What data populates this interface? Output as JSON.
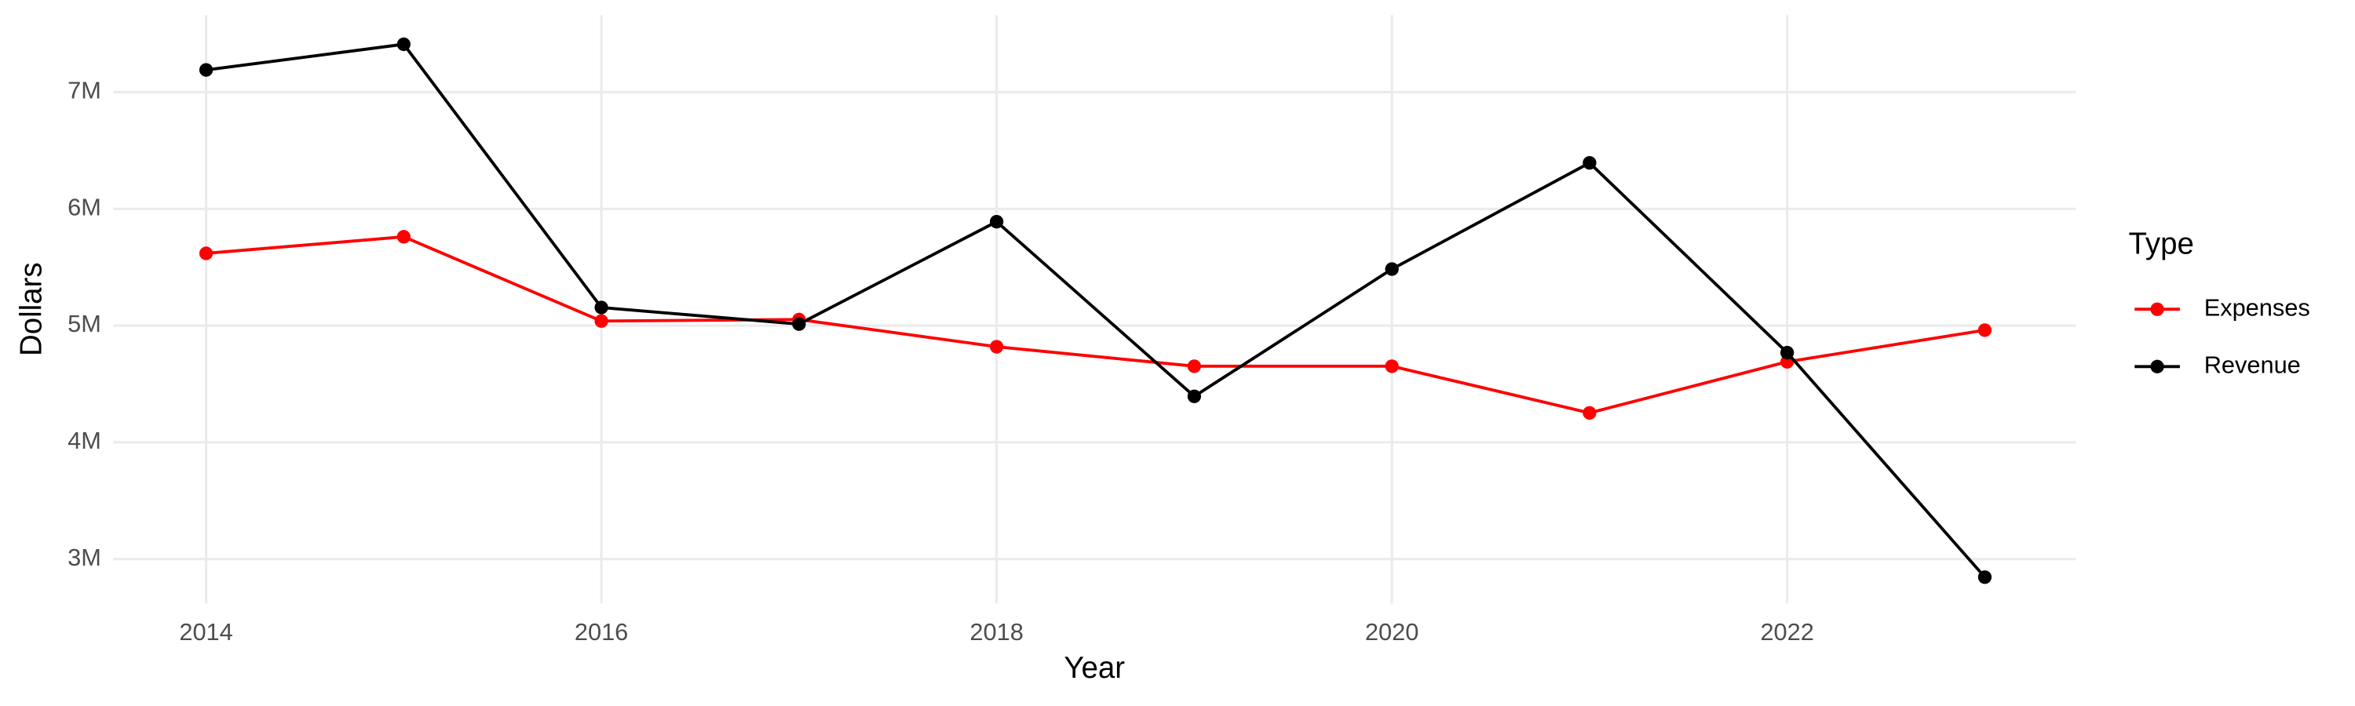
{
  "chart_data": {
    "type": "line",
    "x_label": "Year",
    "y_label": "Dollars",
    "legend_title": "Type",
    "legend_position": "right",
    "grid": true,
    "x": [
      2014,
      2015,
      2016,
      2017,
      2018,
      2019,
      2020,
      2021,
      2022,
      2023
    ],
    "series": [
      {
        "name": "Expenses",
        "color": "#ff0000",
        "values": [
          5619000,
          5761000,
          5039000,
          5052000,
          4819000,
          4652000,
          4652000,
          4252000,
          4690000,
          4961000
        ]
      },
      {
        "name": "Revenue",
        "color": "#000000",
        "values": [
          7190000,
          7410000,
          5155000,
          5013000,
          5890000,
          4394000,
          5484000,
          6394000,
          4768000,
          2845000
        ]
      }
    ],
    "xlim": [
      2013.53,
      2023.46
    ],
    "xticks": [
      2014,
      2016,
      2018,
      2020,
      2022
    ],
    "ylim": [
      2620000,
      7660000
    ],
    "yticks": [
      {
        "value": 3000000,
        "label": "3M"
      },
      {
        "value": 4000000,
        "label": "4M"
      },
      {
        "value": 5000000,
        "label": "5M"
      },
      {
        "value": 6000000,
        "label": "6M"
      },
      {
        "value": 7000000,
        "label": "7M"
      }
    ]
  }
}
